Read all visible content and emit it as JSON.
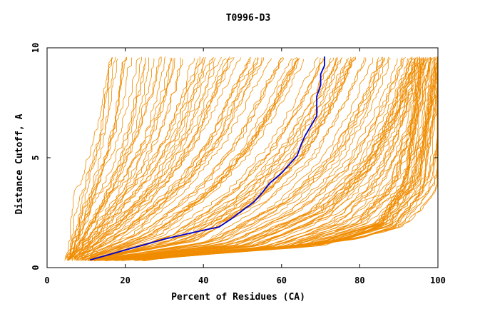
{
  "chart_data": {
    "type": "line",
    "title": "T0996-D3",
    "xlabel": "Percent of Residues (CA)",
    "ylabel": "Distance Cutoff, A",
    "xlim": [
      0,
      100
    ],
    "ylim": [
      0,
      10
    ],
    "x_ticks": [
      "0",
      "20",
      "40",
      "60",
      "80",
      "100"
    ],
    "y_ticks": [
      "0",
      "5",
      "10"
    ],
    "grid": false,
    "legend": "none",
    "colors": {
      "background_series": "#f08c00",
      "highlight_series": "#0000cc",
      "axes": "#000000"
    },
    "background_series": {
      "description_count": 160,
      "approximate_curves": [
        {
          "x": [
            5,
            7,
            9,
            11,
            13,
            14,
            15,
            16
          ],
          "y": [
            0.35,
            1.5,
            3,
            4.5,
            6,
            7.5,
            9,
            9.6
          ]
        },
        {
          "x": [
            6,
            12,
            20,
            26,
            30,
            32
          ],
          "y": [
            0.35,
            2,
            4,
            6,
            8,
            9.6
          ]
        },
        {
          "x": [
            8,
            20,
            32,
            40,
            45,
            50
          ],
          "y": [
            0.35,
            2,
            4,
            6,
            8,
            9.6
          ]
        },
        {
          "x": [
            10,
            30,
            45,
            55,
            62,
            68
          ],
          "y": [
            0.35,
            1.5,
            3.5,
            5.5,
            7.5,
            9.6
          ]
        },
        {
          "x": [
            12,
            40,
            58,
            70,
            78,
            83
          ],
          "y": [
            0.35,
            1.2,
            3,
            5,
            7.5,
            9.6
          ]
        },
        {
          "x": [
            14,
            50,
            70,
            82,
            90,
            96
          ],
          "y": [
            0.35,
            1.0,
            2.5,
            4.5,
            7,
            9.6
          ]
        },
        {
          "x": [
            18,
            60,
            80,
            90,
            96,
            100
          ],
          "y": [
            0.35,
            0.9,
            2,
            3.5,
            6,
            9.6
          ]
        },
        {
          "x": [
            22,
            70,
            88,
            96,
            100
          ],
          "y": [
            0.35,
            1.0,
            2.0,
            4.0,
            9.6
          ]
        },
        {
          "x": [
            26,
            78,
            88,
            95,
            100
          ],
          "y": [
            0.35,
            1.3,
            1.8,
            3.5,
            9.6
          ]
        }
      ]
    },
    "series": [
      {
        "x": [
          11,
          15,
          20,
          25,
          30,
          35,
          40,
          44,
          47,
          50,
          53,
          55,
          57,
          60,
          62,
          64,
          65,
          66,
          67,
          68,
          69,
          69,
          69,
          70,
          70,
          71,
          71
        ],
        "y": [
          0.35,
          0.55,
          0.8,
          1.05,
          1.3,
          1.5,
          1.7,
          1.85,
          2.2,
          2.6,
          3.0,
          3.4,
          3.85,
          4.3,
          4.7,
          5.1,
          5.6,
          6.0,
          6.3,
          6.6,
          6.9,
          7.3,
          7.8,
          8.3,
          8.8,
          9.2,
          9.6
        ]
      }
    ]
  }
}
